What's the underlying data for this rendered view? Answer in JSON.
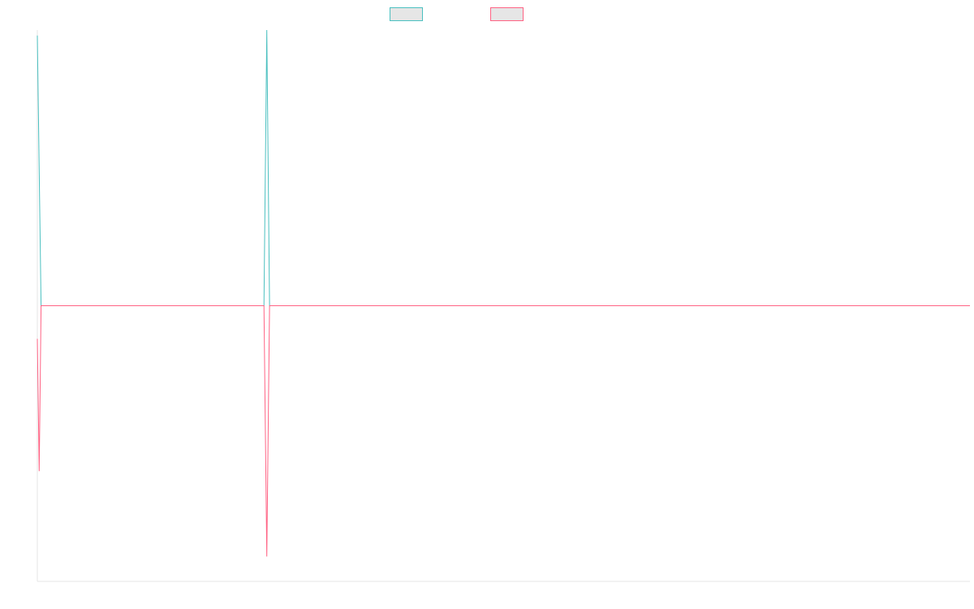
{
  "chart_data": {
    "type": "line",
    "title": "",
    "xlabel": "",
    "ylabel": "",
    "legend": {
      "position": "top-center",
      "entries": [
        {
          "name": "",
          "color": "#4bc0c0",
          "fill": "#e6e6e6"
        },
        {
          "name": "",
          "color": "#ff6384",
          "fill": "#e6e6e6"
        }
      ]
    },
    "grid": false,
    "xlim": [
      0,
      1000
    ],
    "ylim": [
      -1,
      1
    ],
    "series": [
      {
        "name": "",
        "color": "#4bc0c0",
        "points": [
          [
            0,
            0.98
          ],
          [
            4,
            0
          ],
          [
            243,
            0
          ],
          [
            246,
            1
          ],
          [
            249,
            0
          ],
          [
            1000,
            0
          ]
        ]
      },
      {
        "name": "",
        "color": "#ff6384",
        "points": [
          [
            0,
            -0.12
          ],
          [
            2,
            -0.6
          ],
          [
            4,
            0
          ],
          [
            243,
            0
          ],
          [
            246,
            -0.91
          ],
          [
            249,
            0
          ],
          [
            1000,
            0
          ]
        ]
      }
    ]
  }
}
